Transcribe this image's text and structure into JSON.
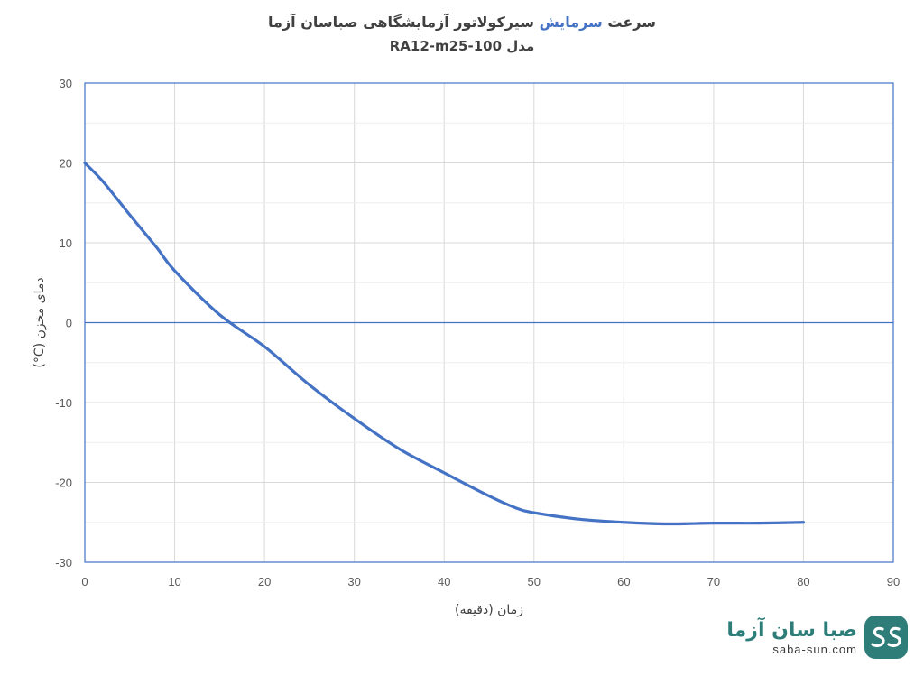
{
  "title": {
    "part1": "سرعت",
    "accent": "سرمایش",
    "part2": "سیرکولاتور آزمایشگاهی صباسان آزما",
    "line2": "مدل RA12-m25-100"
  },
  "colors": {
    "series": "#4472c4",
    "accent": "#4472c4",
    "grid": "#d9d9d9",
    "frame": "#4472c4",
    "brand": "#2e7d78"
  },
  "logo": {
    "brand": "صبا سان آزما",
    "url": "saba-sun.com",
    "icon": "ss-logo-icon"
  },
  "chart_data": {
    "type": "line",
    "xlabel": "زمان (دقیقه)",
    "ylabel": "دمای مخزن (C°)",
    "xlim": [
      0,
      90
    ],
    "ylim": [
      -30,
      30
    ],
    "x_ticks": [
      "0",
      "10",
      "20",
      "30",
      "40",
      "50",
      "60",
      "70",
      "80",
      "90"
    ],
    "y_ticks": [
      "30",
      "20",
      "10",
      "0",
      "-10",
      "-20",
      "-30"
    ],
    "grid": true,
    "legend": "none",
    "series": [
      {
        "x": [
          0,
          2,
          5,
          8,
          10,
          15,
          20,
          25,
          30,
          35,
          40,
          45,
          48,
          50,
          55,
          60,
          65,
          70,
          75,
          80
        ],
        "y": [
          20,
          17.7,
          13.5,
          9.4,
          6.5,
          1,
          -3,
          -7.8,
          -12,
          -15.8,
          -18.8,
          -21.7,
          -23.2,
          -23.8,
          -24.6,
          -25,
          -25.2,
          -25.1,
          -25.1,
          -25
        ]
      }
    ]
  }
}
